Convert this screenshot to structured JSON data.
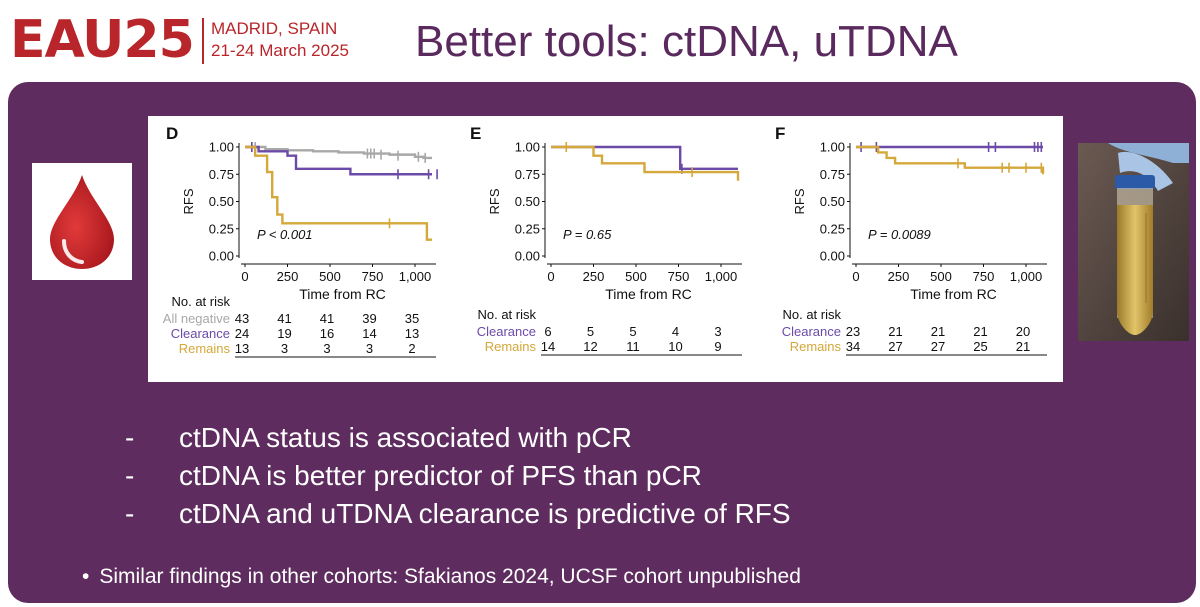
{
  "header": {
    "logo_text": "EAU25",
    "location": "MADRID, SPAIN",
    "dates": "21-24 March 2025",
    "title": "Better tools: ctDNA, uTDNA"
  },
  "colors": {
    "brand_red": "#b8252a",
    "panel_purple": "#5e2c5f",
    "title_purple": "#5a2a5e",
    "series_grey": "#a8a8a8",
    "series_purple": "#6b4aa8",
    "series_gold": "#d4a83a"
  },
  "icons": {
    "blood_drop": "blood-drop-icon"
  },
  "chart_data": [
    {
      "type": "line",
      "panel_label": "D",
      "ylabel": "RFS",
      "xlabel": "Time from RC",
      "xlim": [
        0,
        1100
      ],
      "ylim": [
        0,
        1
      ],
      "xticks": [
        "0",
        "250",
        "500",
        "750",
        "1,000"
      ],
      "yticks": [
        "0.00",
        "0.25",
        "0.50",
        "0.75",
        "1.00"
      ],
      "annotation": "P < 0.001",
      "series": [
        {
          "name": "All negative",
          "color": "#a8a8a8",
          "x": [
            0,
            120,
            250,
            400,
            550,
            700,
            850,
            1000,
            1050,
            1100
          ],
          "y": [
            1.0,
            0.98,
            0.97,
            0.96,
            0.95,
            0.94,
            0.93,
            0.91,
            0.9,
            0.9
          ],
          "censors": [
            [
              40,
              1.0
            ],
            [
              60,
              1.0
            ],
            [
              720,
              0.94
            ],
            [
              740,
              0.94
            ],
            [
              760,
              0.94
            ],
            [
              800,
              0.93
            ],
            [
              900,
              0.92
            ],
            [
              1020,
              0.91
            ],
            [
              1060,
              0.9
            ]
          ]
        },
        {
          "name": "Clearance",
          "color": "#6b4aa8",
          "x": [
            0,
            80,
            250,
            300,
            550,
            620,
            1100
          ],
          "y": [
            1.0,
            0.96,
            0.92,
            0.8,
            0.8,
            0.75,
            0.75
          ],
          "censors": [
            [
              40,
              1.0
            ],
            [
              900,
              0.75
            ],
            [
              1080,
              0.75
            ],
            [
              1130,
              0.75
            ]
          ]
        },
        {
          "name": "Remains",
          "color": "#d4a83a",
          "x": [
            0,
            60,
            130,
            160,
            190,
            220,
            1050,
            1070,
            1100
          ],
          "y": [
            1.0,
            0.92,
            0.77,
            0.54,
            0.38,
            0.3,
            0.3,
            0.15,
            0.15
          ],
          "censors": [
            [
              850,
              0.3
            ]
          ]
        }
      ],
      "risk_table": {
        "label": "No. at risk",
        "rows": [
          {
            "name": "All negative",
            "values": [
              "43",
              "41",
              "41",
              "39",
              "35"
            ]
          },
          {
            "name": "Clearance",
            "values": [
              "24",
              "19",
              "16",
              "14",
              "13"
            ]
          },
          {
            "name": "Remains",
            "values": [
              "13",
              "3",
              "3",
              "3",
              "2"
            ]
          }
        ]
      }
    },
    {
      "type": "line",
      "panel_label": "E",
      "ylabel": "RFS",
      "xlabel": "Time from RC",
      "xlim": [
        0,
        1100
      ],
      "ylim": [
        0,
        1
      ],
      "xticks": [
        "0",
        "250",
        "500",
        "750",
        "1,000"
      ],
      "yticks": [
        "0.00",
        "0.25",
        "0.50",
        "0.75",
        "1.00"
      ],
      "annotation": "P = 0.65",
      "series": [
        {
          "name": "Clearance",
          "color": "#6b4aa8",
          "x": [
            0,
            720,
            760,
            1100
          ],
          "y": [
            1.0,
            1.0,
            0.8,
            0.8
          ],
          "censors": [
            [
              770,
              0.8
            ]
          ]
        },
        {
          "name": "Remains",
          "color": "#d4a83a",
          "x": [
            0,
            250,
            300,
            500,
            550,
            1080,
            1100
          ],
          "y": [
            1.0,
            0.92,
            0.85,
            0.85,
            0.77,
            0.77,
            0.69
          ],
          "censors": [
            [
              90,
              1.0
            ],
            [
              830,
              0.77
            ]
          ]
        }
      ],
      "risk_table": {
        "label": "No. at risk",
        "rows": [
          {
            "name": "Clearance",
            "values": [
              "6",
              "5",
              "5",
              "4",
              "3"
            ]
          },
          {
            "name": "Remains",
            "values": [
              "14",
              "12",
              "11",
              "10",
              "9"
            ]
          }
        ]
      }
    },
    {
      "type": "line",
      "panel_label": "F",
      "ylabel": "RFS",
      "xlabel": "Time from RC",
      "xlim": [
        0,
        1100
      ],
      "ylim": [
        0,
        1
      ],
      "xticks": [
        "0",
        "250",
        "500",
        "750",
        "1,000"
      ],
      "yticks": [
        "0.00",
        "0.25",
        "0.50",
        "0.75",
        "1.00"
      ],
      "annotation": "P = 0.0089",
      "series": [
        {
          "name": "Clearance",
          "color": "#6b4aa8",
          "x": [
            0,
            1100
          ],
          "y": [
            1.0,
            1.0
          ],
          "censors": [
            [
              30,
              1.0
            ],
            [
              120,
              1.0
            ],
            [
              780,
              1.0
            ],
            [
              820,
              1.0
            ],
            [
              1050,
              1.0
            ],
            [
              1070,
              1.0
            ],
            [
              1090,
              1.0
            ]
          ]
        },
        {
          "name": "Remains",
          "color": "#d4a83a",
          "x": [
            0,
            130,
            180,
            230,
            580,
            640,
            1080,
            1100
          ],
          "y": [
            1.0,
            0.95,
            0.9,
            0.85,
            0.85,
            0.81,
            0.81,
            0.75
          ],
          "censors": [
            [
              600,
              0.85
            ],
            [
              860,
              0.81
            ],
            [
              900,
              0.81
            ],
            [
              1000,
              0.81
            ],
            [
              1090,
              0.81
            ]
          ]
        }
      ],
      "risk_table": {
        "label": "No. at risk",
        "rows": [
          {
            "name": "Clearance",
            "values": [
              "23",
              "21",
              "21",
              "21",
              "20"
            ]
          },
          {
            "name": "Remains",
            "values": [
              "34",
              "27",
              "27",
              "25",
              "21"
            ]
          }
        ]
      }
    }
  ],
  "bullets": [
    {
      "marker": "-",
      "text": "ctDNA status is associated with pCR"
    },
    {
      "marker": "-",
      "text": "ctDNA is better predictor of PFS than pCR"
    },
    {
      "marker": "-",
      "text": "ctDNA and uTDNA clearance is predictive of RFS"
    }
  ],
  "note": {
    "marker": "•",
    "text": "Similar findings in other cohorts:  Sfakianos 2024, UCSF cohort unpublished"
  }
}
